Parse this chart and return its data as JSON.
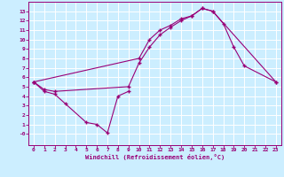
{
  "xlabel": "Windchill (Refroidissement éolien,°C)",
  "bg_color": "#cceeff",
  "line_color": "#990077",
  "xlim": [
    -0.5,
    23.5
  ],
  "ylim": [
    -1.2,
    14.0
  ],
  "xticks": [
    0,
    1,
    2,
    3,
    4,
    5,
    6,
    7,
    8,
    9,
    10,
    11,
    12,
    13,
    14,
    15,
    16,
    17,
    18,
    19,
    20,
    21,
    22,
    23
  ],
  "yticks": [
    0,
    1,
    2,
    3,
    4,
    5,
    6,
    7,
    8,
    9,
    10,
    11,
    12,
    13
  ],
  "ytick_labels": [
    "-0",
    "1",
    "2",
    "3",
    "4",
    "5",
    "6",
    "7",
    "8",
    "9",
    "10",
    "11",
    "12",
    "13"
  ],
  "line1_x": [
    0,
    1,
    2,
    3,
    5,
    6,
    7,
    8,
    9
  ],
  "line1_y": [
    5.5,
    4.5,
    4.2,
    3.2,
    1.2,
    1.0,
    0.1,
    4.0,
    4.5
  ],
  "line2_x": [
    0,
    1,
    2,
    9,
    10,
    11,
    12,
    13,
    14,
    15,
    16,
    17,
    23
  ],
  "line2_y": [
    5.5,
    4.7,
    4.5,
    5.0,
    7.5,
    9.2,
    10.5,
    11.3,
    12.0,
    12.5,
    13.3,
    13.0,
    5.5
  ],
  "line3_x": [
    0,
    10,
    11,
    12,
    13,
    14,
    15,
    16,
    17,
    18,
    19,
    20,
    23
  ],
  "line3_y": [
    5.5,
    8.0,
    10.0,
    11.0,
    11.5,
    12.2,
    12.5,
    13.3,
    13.0,
    11.7,
    9.2,
    7.2,
    5.5
  ]
}
